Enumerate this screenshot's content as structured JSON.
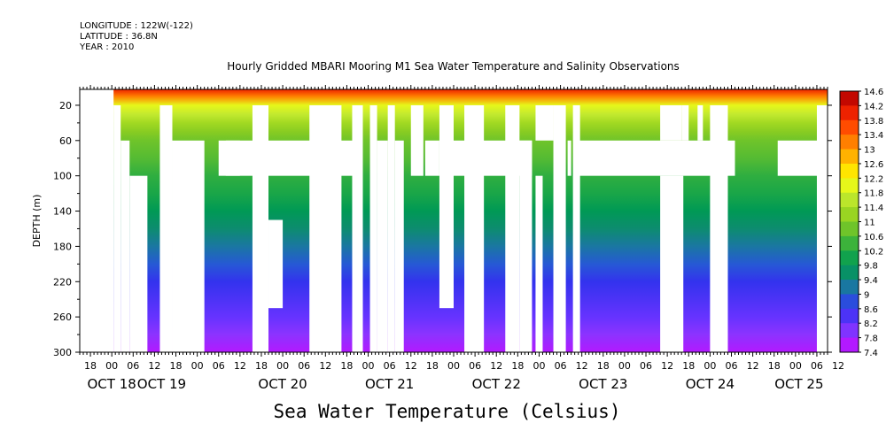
{
  "header": {
    "longitude": "LONGITUDE : 122W(-122)",
    "latitude": "LATITUDE : 36.8N",
    "year": "YEAR : 2010"
  },
  "chart_data": {
    "type": "heatmap",
    "title": "Hourly Gridded MBARI Mooring M1 Sea Water Temperature and Salinity Observations",
    "bottom_title": "Sea Water Temperature (Celsius)",
    "ylabel": "DEPTH (m)",
    "y_axis": {
      "reversed": true,
      "ylim": [
        2,
        300
      ],
      "ticks": [
        20,
        60,
        100,
        140,
        180,
        220,
        260,
        300
      ]
    },
    "x_axis": {
      "range_hours": [
        -9,
        201
      ],
      "hour_labels": [
        "18",
        "00",
        "06",
        "12",
        "18",
        "00",
        "06",
        "12",
        "18",
        "00",
        "06",
        "12",
        "18",
        "00",
        "06",
        "12",
        "18",
        "00",
        "06",
        "12",
        "18",
        "00",
        "06",
        "12",
        "18",
        "00",
        "06",
        "12",
        "18",
        "00",
        "06",
        "12",
        "18",
        "00",
        "06",
        "12"
      ],
      "date_labels": [
        "OCT 18",
        "OCT 19",
        "OCT 20",
        "OCT 21",
        "OCT 22",
        "OCT 23",
        "OCT 24",
        "OCT 25"
      ],
      "date_label_hours": [
        0,
        14,
        48,
        78,
        108,
        138,
        168,
        193
      ]
    },
    "colorbar": {
      "levels": [
        "14.6",
        "14.2",
        "13.8",
        "13.4",
        "13",
        "12.6",
        "12.2",
        "11.8",
        "11.4",
        "11",
        "10.6",
        "10.2",
        "9.8",
        "9.4",
        "9",
        "8.6",
        "8.2",
        "7.8",
        "7.4"
      ],
      "min": 7.4,
      "max": 14.6
    },
    "temperature_profile": {
      "depth": [
        2,
        10,
        20,
        30,
        40,
        50,
        60,
        80,
        100,
        120,
        140,
        160,
        180,
        200,
        220,
        240,
        260,
        280,
        300
      ],
      "value": [
        14.0,
        13.2,
        12.0,
        11.7,
        11.3,
        11.0,
        10.8,
        10.6,
        10.3,
        10.1,
        9.8,
        9.5,
        9.2,
        8.9,
        8.6,
        8.4,
        8.2,
        7.9,
        7.6
      ]
    },
    "data_gaps": [
      {
        "t0": -9,
        "t1": 0.5,
        "d0": 2,
        "d1": 300
      },
      {
        "t0": 0.5,
        "t1": 2.5,
        "d0": 20,
        "d1": 300
      },
      {
        "t0": 2.5,
        "t1": 5,
        "d0": 60,
        "d1": 300
      },
      {
        "t0": 5,
        "t1": 10,
        "d0": 100,
        "d1": 300
      },
      {
        "t0": 13.5,
        "t1": 17,
        "d0": 20,
        "d1": 300
      },
      {
        "t0": 17,
        "t1": 26,
        "d0": 60,
        "d1": 300
      },
      {
        "t0": 32,
        "t1": 36,
        "d0": 60,
        "d1": 100
      },
      {
        "t0": 39.5,
        "t1": 44,
        "d0": 20,
        "d1": 300
      },
      {
        "t0": 30,
        "t1": 70,
        "d0": 60,
        "d1": 100
      },
      {
        "t0": 44,
        "t1": 48,
        "d0": 150,
        "d1": 250
      },
      {
        "t0": 55.5,
        "t1": 64.5,
        "d0": 20,
        "d1": 300
      },
      {
        "t0": 67.5,
        "t1": 70.5,
        "d0": 20,
        "d1": 300
      },
      {
        "t0": 72.5,
        "t1": 74.5,
        "d0": 20,
        "d1": 300
      },
      {
        "t0": 74.5,
        "t1": 77.5,
        "d0": 60,
        "d1": 300
      },
      {
        "t0": 77.5,
        "t1": 79.5,
        "d0": 20,
        "d1": 300
      },
      {
        "t0": 79.5,
        "t1": 82,
        "d0": 60,
        "d1": 300
      },
      {
        "t0": 84,
        "t1": 87.5,
        "d0": 20,
        "d1": 100
      },
      {
        "t0": 88,
        "t1": 92,
        "d0": 60,
        "d1": 100
      },
      {
        "t0": 92,
        "t1": 96,
        "d0": 20,
        "d1": 250
      },
      {
        "t0": 96,
        "t1": 118,
        "d0": 60,
        "d1": 100
      },
      {
        "t0": 99,
        "t1": 104.5,
        "d0": 20,
        "d1": 300
      },
      {
        "t0": 110.5,
        "t1": 114.5,
        "d0": 20,
        "d1": 300
      },
      {
        "t0": 114.5,
        "t1": 118,
        "d0": 60,
        "d1": 300
      },
      {
        "t0": 119,
        "t1": 121,
        "d0": 100,
        "d1": 300
      },
      {
        "t0": 124,
        "t1": 127.5,
        "d0": 20,
        "d1": 300
      },
      {
        "t0": 119,
        "t1": 124,
        "d0": 20,
        "d1": 60
      },
      {
        "t0": 128,
        "t1": 129,
        "d0": 60,
        "d1": 100
      },
      {
        "t0": 129.5,
        "t1": 131.5,
        "d0": 20,
        "d1": 300
      },
      {
        "t0": 131,
        "t1": 171,
        "d0": 60,
        "d1": 100
      },
      {
        "t0": 154,
        "t1": 160,
        "d0": 20,
        "d1": 60
      },
      {
        "t0": 154,
        "t1": 160.5,
        "d0": 100,
        "d1": 300
      },
      {
        "t0": 160,
        "t1": 162,
        "d0": 20,
        "d1": 60
      },
      {
        "t0": 164.5,
        "t1": 166,
        "d0": 20,
        "d1": 60
      },
      {
        "t0": 168,
        "t1": 173,
        "d0": 20,
        "d1": 300
      },
      {
        "t0": 171,
        "t1": 175,
        "d0": 60,
        "d1": 100
      },
      {
        "t0": 187,
        "t1": 201,
        "d0": 60,
        "d1": 100
      },
      {
        "t0": 198,
        "t1": 201,
        "d0": 20,
        "d1": 300
      }
    ]
  }
}
